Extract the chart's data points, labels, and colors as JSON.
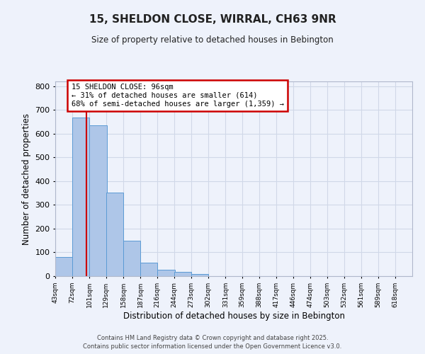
{
  "title": "15, SHELDON CLOSE, WIRRAL, CH63 9NR",
  "subtitle": "Size of property relative to detached houses in Bebington",
  "xlabel": "Distribution of detached houses by size in Bebington",
  "ylabel": "Number of detached properties",
  "bar_left_edges": [
    43,
    72,
    101,
    129,
    158,
    187,
    216,
    244,
    273,
    302,
    331,
    359,
    388,
    417,
    446,
    474,
    503,
    532,
    561,
    589
  ],
  "bar_heights": [
    82,
    667,
    635,
    352,
    148,
    57,
    27,
    17,
    8,
    0,
    0,
    0,
    0,
    0,
    0,
    0,
    0,
    0,
    0,
    0
  ],
  "bin_width": 29,
  "bar_color": "#aec6e8",
  "bar_edge_color": "#5b9bd5",
  "ylim": [
    0,
    820
  ],
  "yticks": [
    0,
    100,
    200,
    300,
    400,
    500,
    600,
    700,
    800
  ],
  "xtick_labels": [
    "43sqm",
    "72sqm",
    "101sqm",
    "129sqm",
    "158sqm",
    "187sqm",
    "216sqm",
    "244sqm",
    "273sqm",
    "302sqm",
    "331sqm",
    "359sqm",
    "388sqm",
    "417sqm",
    "446sqm",
    "474sqm",
    "503sqm",
    "532sqm",
    "561sqm",
    "589sqm",
    "618sqm"
  ],
  "xtick_positions": [
    43,
    72,
    101,
    129,
    158,
    187,
    216,
    244,
    273,
    302,
    331,
    359,
    388,
    417,
    446,
    474,
    503,
    532,
    561,
    589,
    618
  ],
  "xlim_left": 43,
  "xlim_right": 647,
  "red_line_x": 96,
  "annotation_text": "15 SHELDON CLOSE: 96sqm\n← 31% of detached houses are smaller (614)\n68% of semi-detached houses are larger (1,359) →",
  "annotation_box_color": "#ffffff",
  "annotation_box_edge_color": "#cc0000",
  "grid_color": "#d0d8e8",
  "background_color": "#eef2fb",
  "footnote1": "Contains HM Land Registry data © Crown copyright and database right 2025.",
  "footnote2": "Contains public sector information licensed under the Open Government Licence v3.0."
}
